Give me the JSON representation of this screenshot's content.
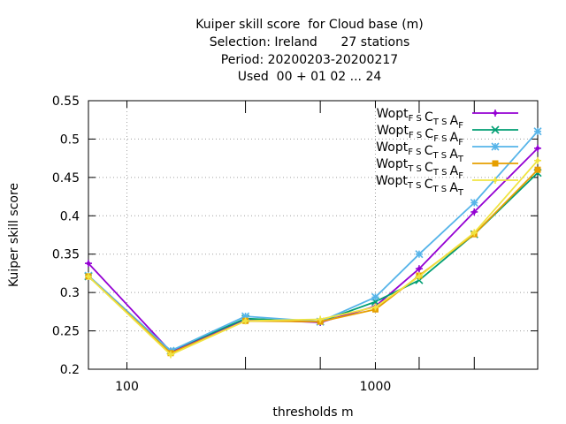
{
  "chart_data": {
    "type": "line",
    "title_lines": [
      "Kuiper skill score  for Cloud base (m)",
      "Selection: Ireland      27 stations",
      "Period: 20200203-20200217",
      "Used  00 + 01 02 ... 24"
    ],
    "xlabel": "thresholds m",
    "ylabel": "Kuiper skill score",
    "x_scale": "log",
    "xlim": [
      70,
      4500
    ],
    "ylim": [
      0.2,
      0.55
    ],
    "x_tick_labels": [
      {
        "value": 100,
        "label": "100"
      },
      {
        "value": 1000,
        "label": "1000"
      }
    ],
    "x_minor_ticks": [
      300,
      600,
      1500,
      2500,
      4500
    ],
    "y_ticks": [
      {
        "value": 0.2,
        "label": "0.2"
      },
      {
        "value": 0.25,
        "label": "0.25"
      },
      {
        "value": 0.3,
        "label": "0.3"
      },
      {
        "value": 0.35,
        "label": "0.35"
      },
      {
        "value": 0.4,
        "label": "0.4"
      },
      {
        "value": 0.45,
        "label": "0.45"
      },
      {
        "value": 0.5,
        "label": "0.5"
      },
      {
        "value": 0.55,
        "label": "0.55"
      }
    ],
    "grid": true,
    "legend_position": "top-right",
    "x": [
      70,
      150,
      300,
      600,
      1000,
      1500,
      2500,
      4500
    ],
    "series": [
      {
        "base": "Wopt",
        "subs": [
          "FS",
          "TS",
          "F"
        ],
        "color": "#9400d3",
        "marker": "plus",
        "values": [
          0.338,
          0.223,
          0.265,
          0.261,
          0.282,
          0.331,
          0.405,
          0.488
        ]
      },
      {
        "base": "Wopt",
        "subs": [
          "FS",
          "FS",
          "F"
        ],
        "color": "#009e73",
        "marker": "x",
        "values": [
          0.321,
          0.224,
          0.266,
          0.262,
          0.288,
          0.316,
          0.376,
          0.456
        ]
      },
      {
        "base": "Wopt",
        "subs": [
          "FS",
          "TS",
          "T"
        ],
        "color": "#56b4e9",
        "marker": "star",
        "values": [
          0.322,
          0.224,
          0.269,
          0.262,
          0.294,
          0.35,
          0.417,
          0.51
        ]
      },
      {
        "base": "Wopt",
        "subs": [
          "TS",
          "TS",
          "F"
        ],
        "color": "#e69f00",
        "marker": "box",
        "values": [
          0.321,
          0.221,
          0.263,
          0.262,
          0.278,
          0.322,
          0.376,
          0.46
        ]
      },
      {
        "base": "Wopt",
        "subs": [
          "TS",
          "TS",
          "T"
        ],
        "color": "#f0e442",
        "marker": "plus",
        "values": [
          0.321,
          0.219,
          0.263,
          0.265,
          0.281,
          0.321,
          0.378,
          0.472
        ]
      }
    ]
  }
}
